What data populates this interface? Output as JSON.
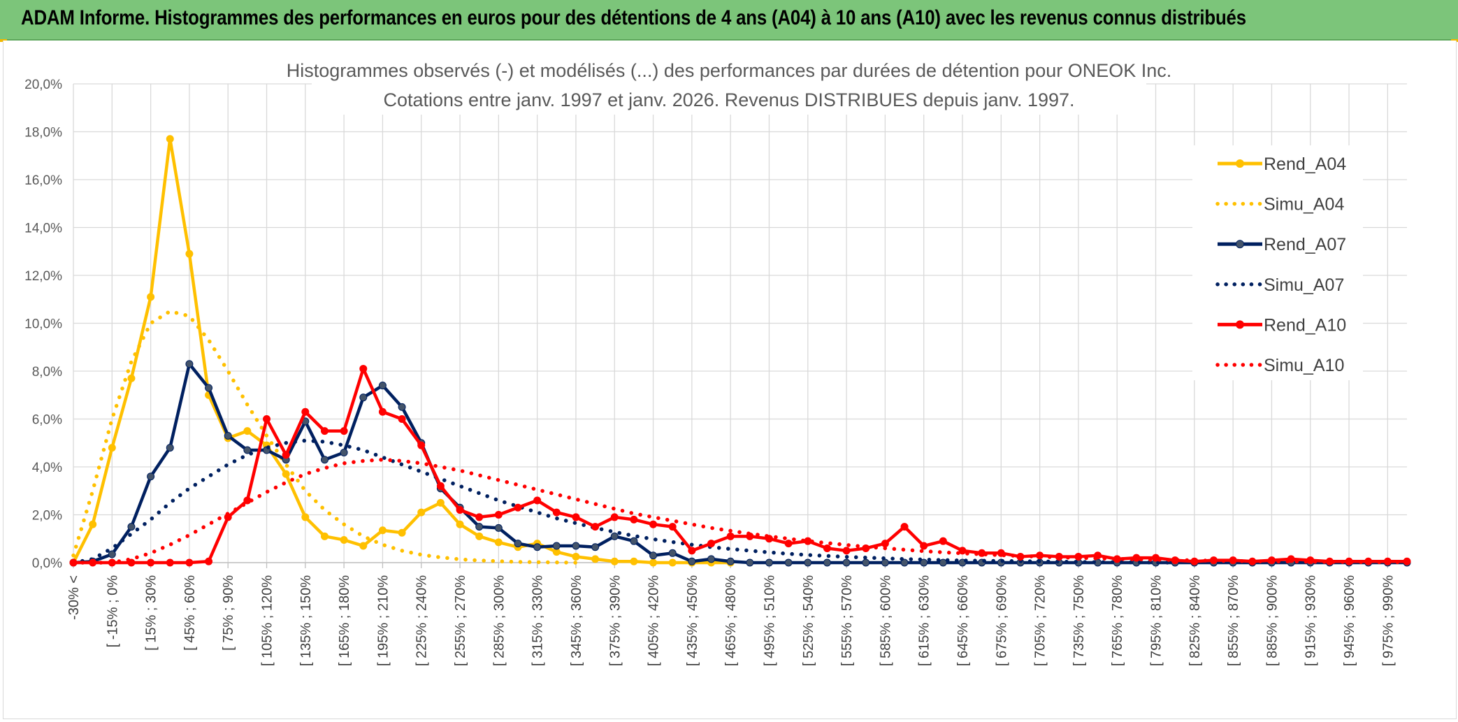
{
  "banner": {
    "title": "ADAM Informe. Histogrammes des performances en euros pour des détentions de 4 ans (A04) à 10 ans (A10) avec les revenus connus distribués"
  },
  "colors": {
    "banner_bg": "#7cc57a",
    "A04": "#ffc000",
    "A07": "#002060",
    "A10": "#ff0000",
    "marker_A07": "#44546a",
    "grid": "#d9d9d9"
  },
  "chart_data": {
    "type": "line",
    "title": "Histogrammes observés (-) et modélisés (...) des performances par durées de détention pour ONEOK Inc.",
    "subtitle": "Cotations entre janv. 1997 et janv. 2026. Revenus DISTRIBUES depuis janv. 1997.",
    "ylim": [
      0,
      20
    ],
    "y_ticks": [
      "0,0%",
      "2,0%",
      "4,0%",
      "6,0%",
      "8,0%",
      "10,0%",
      "12,0%",
      "14,0%",
      "16,0%",
      "18,0%",
      "20,0%"
    ],
    "grid": true,
    "legend_position": "right",
    "x_tick_labels": [
      "-30% <",
      "[ -15% ; 0%",
      "[ 15% ; 30%",
      "[ 45% ; 60%",
      "[ 75% ; 90%",
      "[ 105% ; 120%",
      "[ 135% ; 150%",
      "[ 165% ; 180%",
      "[ 195% ; 210%",
      "[ 225% ; 240%",
      "[ 255% ; 270%",
      "[ 285% ; 300%",
      "[ 315% ; 330%",
      "[ 345% ; 360%",
      "[ 375% ; 390%",
      "[ 405% ; 420%",
      "[ 435% ; 450%",
      "[ 465% ; 480%",
      "[ 495% ; 510%",
      "[ 525% ; 540%",
      "[ 555% ; 570%",
      "[ 585% ; 600%",
      "[ 615% ; 630%",
      "[ 645% ; 660%",
      "[ 675% ; 690%",
      "[ 705% ; 720%",
      "[ 735% ; 750%",
      "[ 765% ; 780%",
      "[ 795% ; 810%",
      "[ 825% ; 840%",
      "[ 855% ; 870%",
      "[ 885% ; 900%",
      "[ 915% ; 930%",
      "[ 945% ; 960%",
      "[ 975% ; 990%"
    ],
    "series": [
      {
        "name": "Rend_A04",
        "style": "solid",
        "color": "#ffc000",
        "values": [
          0.0,
          1.6,
          4.8,
          7.7,
          11.1,
          17.7,
          12.9,
          7.0,
          5.2,
          5.5,
          4.9,
          3.7,
          1.9,
          1.1,
          0.95,
          0.7,
          1.35,
          1.25,
          2.1,
          2.5,
          1.6,
          1.1,
          0.85,
          0.65,
          0.8,
          0.45,
          0.25,
          0.15,
          0.05,
          0.05,
          0.0,
          0.0,
          0.0,
          0.0,
          0.0
        ]
      },
      {
        "name": "Simu_A04",
        "style": "dotted",
        "color": "#ffc000",
        "values": [
          0.3,
          3.0,
          6.0,
          8.4,
          10.0,
          10.5,
          10.3,
          9.3,
          8.0,
          6.6,
          5.3,
          4.1,
          3.0,
          2.2,
          1.6,
          1.1,
          0.75,
          0.5,
          0.33,
          0.22,
          0.14,
          0.09,
          0.06,
          0.03,
          0.02,
          0.01,
          0.0
        ]
      },
      {
        "name": "Rend_A07",
        "style": "solid",
        "color": "#002060",
        "values": [
          0.0,
          0.05,
          0.35,
          1.5,
          3.6,
          4.8,
          8.3,
          7.3,
          5.3,
          4.7,
          4.7,
          4.3,
          5.9,
          4.3,
          4.6,
          6.9,
          7.4,
          6.5,
          5.0,
          3.1,
          2.3,
          1.5,
          1.45,
          0.8,
          0.65,
          0.7,
          0.7,
          0.65,
          1.1,
          0.9,
          0.3,
          0.4,
          0.05,
          0.15,
          0.05,
          0.0,
          0.0,
          0.0,
          0.0,
          0.0,
          0.0,
          0.0,
          0.0,
          0.0,
          0.0,
          0.0,
          0.0,
          0.0,
          0.0,
          0.0,
          0.0,
          0.0,
          0.0,
          0.0,
          0.0,
          0.0,
          0.0,
          0.0,
          0.0,
          0.0,
          0.0,
          0.0,
          0.0,
          0.0,
          0.0,
          0.0,
          0.0,
          0.0,
          0.0,
          0.0
        ]
      },
      {
        "name": "Simu_A07",
        "style": "dotted",
        "color": "#002060",
        "values": [
          0.0,
          0.15,
          0.6,
          1.2,
          1.8,
          2.5,
          3.1,
          3.6,
          4.1,
          4.5,
          4.8,
          5.0,
          5.1,
          5.05,
          4.9,
          4.7,
          4.4,
          4.1,
          3.8,
          3.5,
          3.2,
          2.9,
          2.6,
          2.35,
          2.1,
          1.85,
          1.65,
          1.45,
          1.28,
          1.12,
          0.98,
          0.86,
          0.75,
          0.65,
          0.57,
          0.5,
          0.43,
          0.37,
          0.32,
          0.28,
          0.24,
          0.21,
          0.18,
          0.15,
          0.13,
          0.11,
          0.09,
          0.08,
          0.07,
          0.06,
          0.05,
          0.04,
          0.03,
          0.02,
          0.02,
          0.01,
          0.01,
          0.0
        ]
      },
      {
        "name": "Rend_A10",
        "style": "solid",
        "color": "#ff0000",
        "values": [
          0.0,
          0.0,
          0.0,
          0.0,
          0.0,
          0.0,
          0.0,
          0.05,
          1.9,
          2.6,
          6.0,
          4.5,
          6.3,
          5.5,
          5.5,
          8.1,
          6.3,
          6.0,
          4.9,
          3.2,
          2.2,
          1.9,
          2.0,
          2.3,
          2.6,
          2.1,
          1.9,
          1.5,
          1.9,
          1.8,
          1.6,
          1.5,
          0.5,
          0.8,
          1.1,
          1.1,
          1.0,
          0.8,
          0.9,
          0.6,
          0.5,
          0.6,
          0.8,
          1.5,
          0.7,
          0.9,
          0.5,
          0.4,
          0.4,
          0.25,
          0.3,
          0.25,
          0.25,
          0.3,
          0.15,
          0.2,
          0.2,
          0.1,
          0.05,
          0.1,
          0.1,
          0.05,
          0.1,
          0.15,
          0.1,
          0.05,
          0.05,
          0.05,
          0.05,
          0.05
        ]
      },
      {
        "name": "Simu_A10",
        "style": "dotted",
        "color": "#ff0000",
        "values": [
          0.0,
          0.0,
          0.0,
          0.15,
          0.4,
          0.75,
          1.15,
          1.6,
          2.05,
          2.5,
          2.95,
          3.35,
          3.7,
          3.95,
          4.15,
          4.25,
          4.3,
          4.25,
          4.15,
          4.0,
          3.85,
          3.65,
          3.45,
          3.25,
          3.05,
          2.85,
          2.65,
          2.45,
          2.25,
          2.05,
          1.9,
          1.75,
          1.6,
          1.45,
          1.33,
          1.21,
          1.1,
          1.0,
          0.9,
          0.82,
          0.74,
          0.66,
          0.6,
          0.54,
          0.48,
          0.43,
          0.39,
          0.35,
          0.31,
          0.28,
          0.25,
          0.22,
          0.2,
          0.18,
          0.16,
          0.14,
          0.12,
          0.11,
          0.1,
          0.08,
          0.07,
          0.06,
          0.05,
          0.05,
          0.04,
          0.03,
          0.03,
          0.02,
          0.02,
          0.02
        ]
      }
    ]
  }
}
